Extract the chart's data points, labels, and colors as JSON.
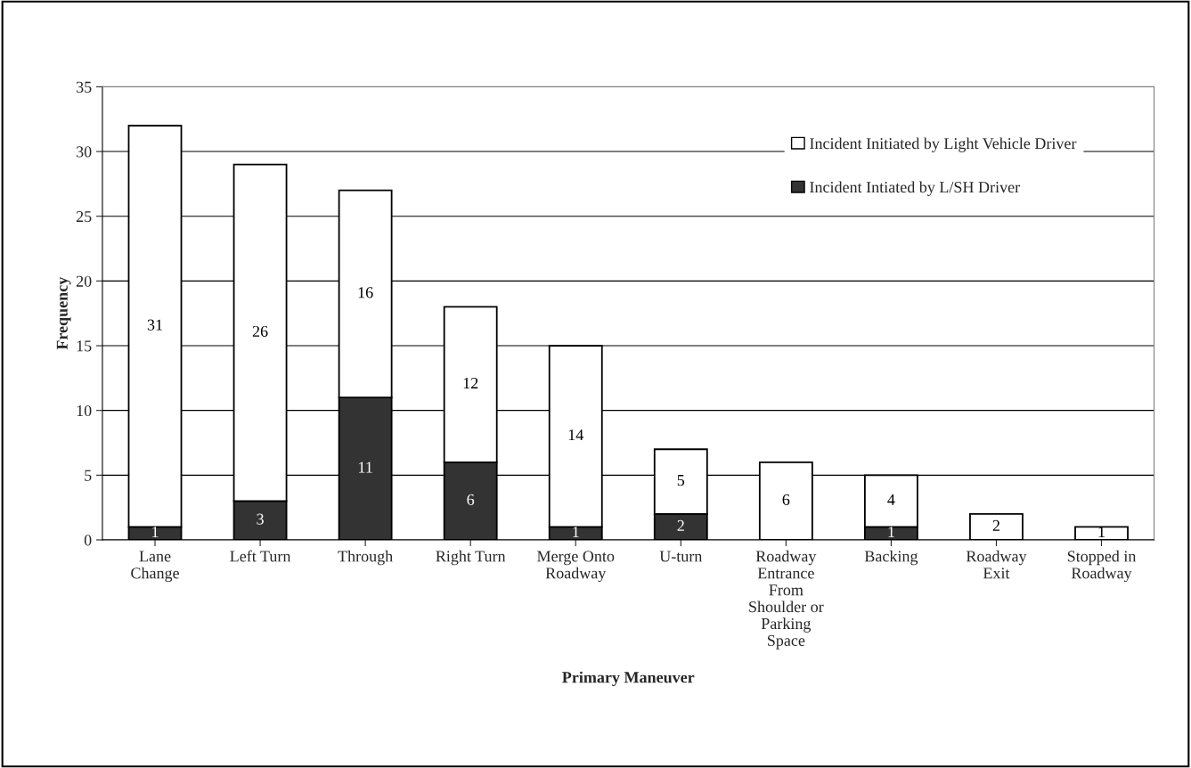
{
  "chart_data": {
    "type": "bar",
    "stacked": true,
    "xlabel": "Primary Maneuver",
    "ylabel": "Frequency",
    "categories": [
      "Lane\nChange",
      "Left Turn",
      "Through",
      "Right Turn",
      "Merge Onto\nRoadway",
      "U-turn",
      "Roadway\nEntrance\nFrom\nShoulder or\nParking\nSpace",
      "Backing",
      "Roadway\nExit",
      "Stopped in\nRoadway"
    ],
    "series": [
      {
        "name": "Incident Intiated by L/SH Driver",
        "color": "#333333",
        "values": [
          1,
          3,
          11,
          6,
          1,
          2,
          0,
          1,
          0,
          0
        ],
        "value_labels": [
          "1",
          "3",
          "11",
          "6",
          "1",
          "2",
          null,
          "1",
          null,
          null
        ]
      },
      {
        "name": "Incident Initiated by Light Vehicle Driver",
        "color": "#ffffff",
        "values": [
          31,
          26,
          16,
          12,
          14,
          5,
          6,
          4,
          2,
          1
        ],
        "value_labels": [
          "31",
          "26",
          "16",
          "12",
          "14",
          "5",
          "6",
          "4",
          "2",
          "1"
        ]
      }
    ],
    "ylim": [
      0,
      35
    ],
    "yticks": [
      0,
      5,
      10,
      15,
      20,
      25,
      30,
      35
    ],
    "grid": "y",
    "legend": "top right"
  }
}
